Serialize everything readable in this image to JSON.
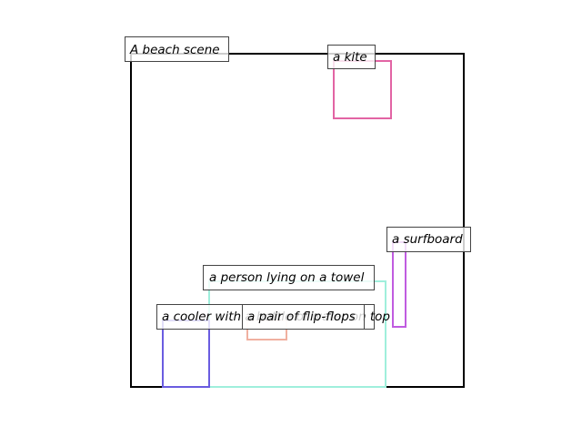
{
  "scene": {
    "caption": "A beach scene",
    "objects": [
      {
        "id": "kite",
        "label": "a kite",
        "color": "#e264a4"
      },
      {
        "id": "surfboard",
        "label": "a surfboard",
        "color": "#c05ce0"
      },
      {
        "id": "person",
        "label": "a person lying on a towel",
        "color": "#9fefdc"
      },
      {
        "id": "cooler",
        "label": "a cooler with a bottle of water on top",
        "color": "#6a5ce0"
      },
      {
        "id": "flipflops",
        "label": "a pair of flip-flops",
        "color": "#f0b0a0"
      }
    ]
  }
}
